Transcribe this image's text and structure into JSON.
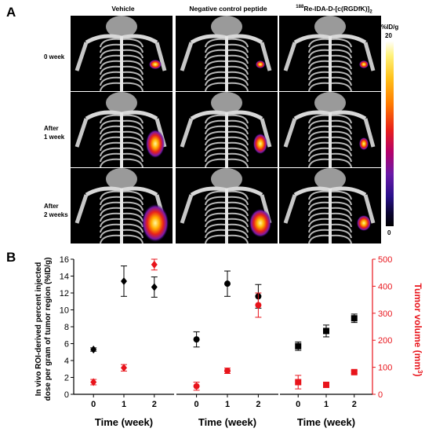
{
  "figure": {
    "panel_a_label": "A",
    "panel_b_label": "B",
    "column_headers": [
      "Vehicle",
      "Negative control peptide",
      "188Re-IDA-D-[c(RGDfK)]2"
    ],
    "column_header_parts": {
      "sup": "188",
      "rest": "Re-IDA-D-[c(RGDfK)]",
      "sub": "2"
    },
    "row_labels": [
      [
        "0 week"
      ],
      [
        "After",
        "1 week"
      ],
      [
        "After",
        "2 weeks"
      ]
    ],
    "colorbar": {
      "unit": "%ID/g",
      "max": "20",
      "min": "0"
    }
  },
  "chart_data": [
    {
      "type": "scatter",
      "panel": "Vehicle",
      "x": [
        0,
        1,
        2
      ],
      "xlabel": "Time (week)",
      "ylabel": "In vivo ROI-derived percent injected dose per gram of tumor region (%ID/g)",
      "ylabel_lines": [
        "In vivo ROI-derived percent injected",
        "dose per gram of tumor region (%ID/g)"
      ],
      "ylim": [
        0,
        16
      ],
      "yticks": [
        0,
        2,
        4,
        6,
        8,
        10,
        12,
        14,
        16
      ],
      "y2label": "Tumor volume (mm3)",
      "y2lim": [
        0,
        500
      ],
      "y2ticks": [
        0,
        100,
        200,
        300,
        400,
        500
      ],
      "series": [
        {
          "axis": "left",
          "marker": "diamond",
          "color": "#000000",
          "values": [
            5.3,
            13.4,
            12.7
          ],
          "errors": [
            0.2,
            1.8,
            1.2
          ]
        },
        {
          "axis": "right",
          "marker": "diamond",
          "color": "#e8141b",
          "values": [
            45,
            98,
            480
          ],
          "errors": [
            10,
            12,
            20
          ]
        }
      ]
    },
    {
      "type": "scatter",
      "panel": "Negative control peptide",
      "x": [
        0,
        1,
        2
      ],
      "xlabel": "Time (week)",
      "ylim": [
        0,
        16
      ],
      "y2lim": [
        0,
        500
      ],
      "series": [
        {
          "axis": "left",
          "marker": "circle",
          "color": "#000000",
          "values": [
            6.5,
            13.1,
            11.6
          ],
          "errors": [
            0.9,
            1.5,
            1.4
          ]
        },
        {
          "axis": "right",
          "marker": "circle",
          "color": "#e8141b",
          "values": [
            30,
            87,
            330
          ],
          "errors": [
            15,
            10,
            45
          ]
        }
      ]
    },
    {
      "type": "scatter",
      "panel": "188Re-IDA-D-[c(RGDfK)]2",
      "x": [
        0,
        1,
        2
      ],
      "xlabel": "Time (week)",
      "ylim": [
        0,
        16
      ],
      "y2lim": [
        0,
        500
      ],
      "series": [
        {
          "axis": "left",
          "marker": "square",
          "color": "#000000",
          "values": [
            5.7,
            7.5,
            9.0
          ],
          "errors": [
            0.5,
            0.7,
            0.5
          ]
        },
        {
          "axis": "right",
          "marker": "square",
          "color": "#e8141b",
          "values": [
            45,
            35,
            82
          ],
          "errors": [
            25,
            5,
            5
          ]
        }
      ]
    }
  ]
}
